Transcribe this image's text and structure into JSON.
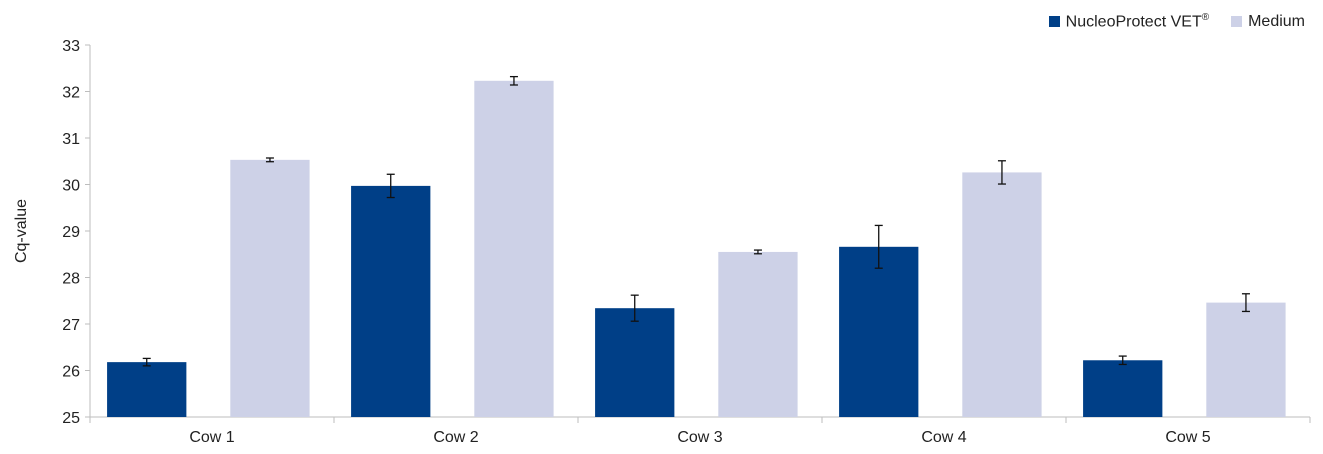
{
  "chart_data": {
    "type": "bar",
    "title": "",
    "xlabel": "",
    "ylabel": "Cq-value",
    "ylim": [
      25,
      33
    ],
    "yticks": [
      25,
      26,
      27,
      28,
      29,
      30,
      31,
      32,
      33
    ],
    "categories": [
      "Cow 1",
      "Cow 2",
      "Cow 3",
      "Cow 4",
      "Cow 5"
    ],
    "legend_position": "top-right",
    "grid": false,
    "series": [
      {
        "name": "NucleoProtect VET",
        "name_sup": "®",
        "color": "#003f87",
        "values": [
          26.18,
          29.97,
          27.34,
          28.66,
          26.22
        ],
        "errors": [
          0.08,
          0.25,
          0.28,
          0.46,
          0.09
        ]
      },
      {
        "name": "Medium",
        "color": "#cdd1e7",
        "values": [
          30.53,
          32.23,
          28.55,
          30.26,
          27.46
        ],
        "errors": [
          0.04,
          0.09,
          0.04,
          0.25,
          0.19
        ]
      }
    ]
  }
}
